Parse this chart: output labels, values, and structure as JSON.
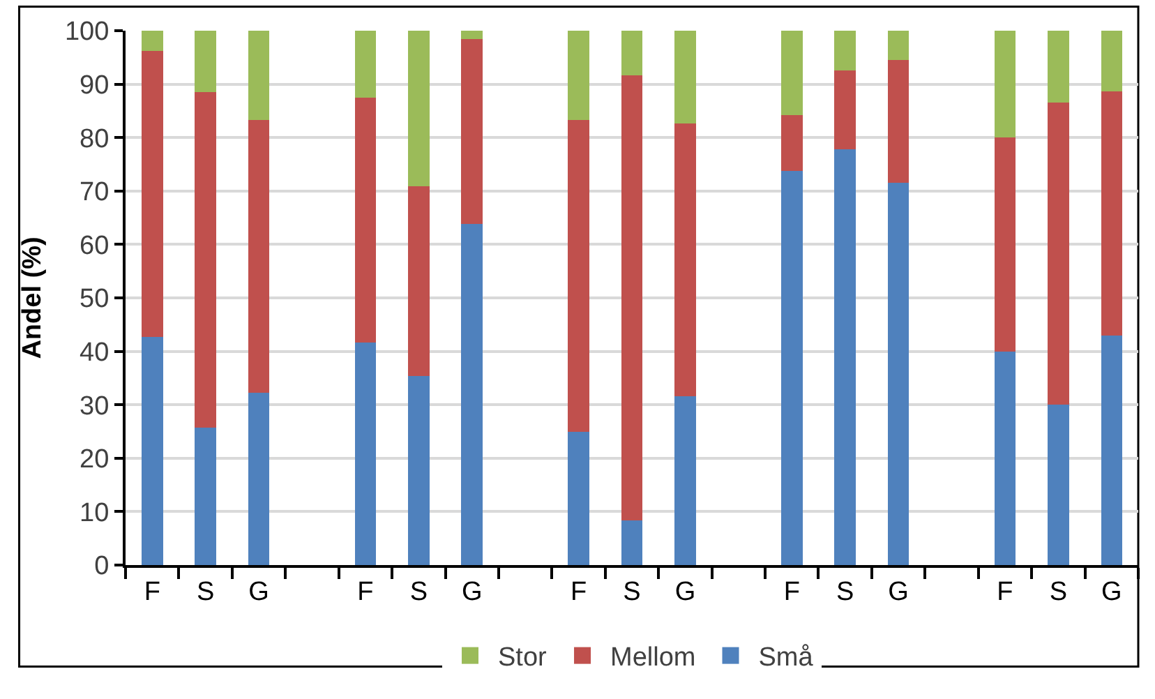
{
  "chart_data": {
    "type": "bar",
    "stacked": true,
    "ylabel": "Andel (%)",
    "categories": [
      "F",
      "S",
      "G",
      null,
      "F",
      "S",
      "G",
      null,
      "F",
      "S",
      "G",
      null,
      "F",
      "S",
      "G",
      null,
      "F",
      "S",
      "G"
    ],
    "series": [
      {
        "name": "Små",
        "color": "#4f81bd",
        "values": [
          42.7,
          25.7,
          32.2,
          null,
          41.7,
          35.4,
          63.8,
          null,
          25.0,
          8.4,
          31.6,
          null,
          73.7,
          77.8,
          71.6,
          null,
          40.0,
          30.0,
          42.9
        ]
      },
      {
        "name": "Mellom",
        "color": "#c0504d",
        "values": [
          53.5,
          62.8,
          51.1,
          null,
          45.8,
          35.5,
          34.6,
          null,
          58.3,
          83.2,
          51.1,
          null,
          10.5,
          14.8,
          22.9,
          null,
          40.0,
          56.6,
          45.8
        ]
      },
      {
        "name": "Stor",
        "color": "#9bbb59",
        "values": [
          3.8,
          11.5,
          16.7,
          null,
          12.5,
          29.1,
          1.6,
          null,
          16.7,
          8.4,
          17.3,
          null,
          15.8,
          7.4,
          5.5,
          null,
          20.0,
          13.4,
          11.3
        ]
      }
    ],
    "ylim": [
      0,
      100
    ],
    "yticks": [
      0,
      10,
      20,
      30,
      40,
      50,
      60,
      70,
      80,
      90,
      100
    ],
    "grid": "y",
    "legend": "bottom"
  }
}
